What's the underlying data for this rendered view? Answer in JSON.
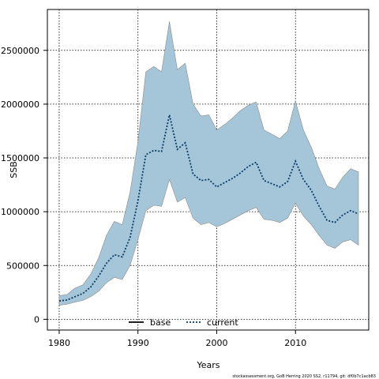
{
  "chart_data": {
    "type": "line",
    "xlabel": "Years",
    "ylabel": "SSB",
    "xlim": [
      1978.5,
      2019.3
    ],
    "ylim": [
      -100000,
      2880000
    ],
    "xticks": [
      1980,
      1990,
      2000,
      2010
    ],
    "yticks": [
      0,
      500000,
      1000000,
      1500000,
      2000000,
      2500000
    ],
    "grid": true,
    "legend_position": "bottom-center",
    "legend": [
      {
        "name": "base",
        "style": "solid",
        "color": "#000000"
      },
      {
        "name": "current",
        "style": "dotted",
        "color": "#0a3a66"
      }
    ],
    "x": [
      1980,
      1981,
      1982,
      1983,
      1984,
      1985,
      1986,
      1987,
      1988,
      1989,
      1990,
      1991,
      1992,
      1993,
      1994,
      1995,
      1996,
      1997,
      1998,
      1999,
      2000,
      2001,
      2002,
      2003,
      2004,
      2005,
      2006,
      2007,
      2008,
      2009,
      2010,
      2011,
      2012,
      2013,
      2014,
      2015,
      2016,
      2017,
      2018
    ],
    "series": [
      {
        "name": "current",
        "values": [
          170000,
          180000,
          210000,
          240000,
          300000,
          400000,
          520000,
          600000,
          580000,
          760000,
          1100000,
          1530000,
          1570000,
          1560000,
          1900000,
          1580000,
          1640000,
          1350000,
          1290000,
          1300000,
          1230000,
          1270000,
          1310000,
          1360000,
          1420000,
          1460000,
          1290000,
          1260000,
          1230000,
          1280000,
          1470000,
          1300000,
          1200000,
          1050000,
          920000,
          900000,
          970000,
          1010000,
          980000
        ]
      },
      {
        "name": "upper",
        "values": [
          220000,
          230000,
          290000,
          320000,
          420000,
          570000,
          780000,
          910000,
          880000,
          1180000,
          1650000,
          2300000,
          2350000,
          2300000,
          2770000,
          2320000,
          2380000,
          2000000,
          1890000,
          1900000,
          1760000,
          1810000,
          1870000,
          1940000,
          1990000,
          2020000,
          1760000,
          1720000,
          1680000,
          1750000,
          2030000,
          1760000,
          1600000,
          1400000,
          1240000,
          1210000,
          1320000,
          1400000,
          1370000
        ]
      },
      {
        "name": "lower",
        "values": [
          130000,
          140000,
          160000,
          175000,
          210000,
          260000,
          340000,
          390000,
          370000,
          500000,
          740000,
          1010000,
          1060000,
          1050000,
          1300000,
          1090000,
          1130000,
          940000,
          880000,
          900000,
          860000,
          890000,
          930000,
          970000,
          1010000,
          1040000,
          930000,
          920000,
          900000,
          940000,
          1080000,
          960000,
          880000,
          780000,
          690000,
          660000,
          720000,
          740000,
          690000
        ]
      }
    ]
  },
  "footer": "stockassessment.org, GoB Herring 2020 SS2, r11794, git: df0b7c1acb83"
}
